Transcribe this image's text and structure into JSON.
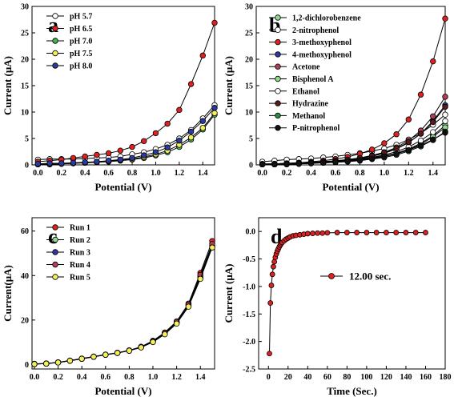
{
  "chart_data": [
    {
      "panel_label": "a",
      "type": "line",
      "xlabel": "Potential (V)",
      "ylabel": "Current (μA)",
      "xlim": [
        -0.05,
        1.5
      ],
      "ylim": [
        0,
        30
      ],
      "xticks": [
        "0.0",
        "0.2",
        "0.4",
        "0.6",
        "0.8",
        "1.0",
        "1.2",
        "1.4"
      ],
      "xtick_values": [
        0,
        0.2,
        0.4,
        0.6,
        0.8,
        1.0,
        1.2,
        1.4
      ],
      "yticks": [
        "0",
        "5",
        "10",
        "15",
        "20",
        "25",
        "30"
      ],
      "ytick_values": [
        0,
        5,
        10,
        15,
        20,
        25,
        30
      ],
      "legend": "top-left",
      "x": [
        0,
        0.1,
        0.2,
        0.3,
        0.4,
        0.5,
        0.6,
        0.7,
        0.8,
        0.9,
        1.0,
        1.1,
        1.2,
        1.3,
        1.4,
        1.5
      ],
      "series": [
        {
          "name": "pH 5.7",
          "color": "#ffffff",
          "values": [
            1.0,
            1.1,
            1.1,
            1.1,
            1.2,
            1.3,
            1.4,
            1.6,
            2.0,
            2.4,
            3.0,
            3.8,
            5.0,
            6.6,
            8.8,
            11.3
          ]
        },
        {
          "name": "pH 6.5",
          "color": "#e02020",
          "values": [
            0.6,
            0.8,
            1.0,
            1.3,
            1.6,
            1.9,
            2.2,
            2.7,
            3.4,
            4.5,
            6.0,
            7.8,
            10.4,
            15.3,
            20.7,
            26.9
          ]
        },
        {
          "name": "pH 7.0",
          "color": "#3cb44b",
          "values": [
            0.1,
            0.1,
            0.2,
            0.3,
            0.4,
            0.5,
            0.6,
            0.8,
            1.0,
            1.3,
            1.8,
            2.4,
            3.4,
            4.8,
            6.7,
            9.5
          ]
        },
        {
          "name": "pH 7.5",
          "color": "#f5f05a",
          "values": [
            0.1,
            0.2,
            0.2,
            0.3,
            0.4,
            0.5,
            0.7,
            0.9,
            1.1,
            1.5,
            2.0,
            2.7,
            3.8,
            5.2,
            7.0,
            9.8
          ]
        },
        {
          "name": "pH 8.0",
          "color": "#2b3aa0",
          "values": [
            0.2,
            0.3,
            0.3,
            0.4,
            0.5,
            0.6,
            0.8,
            1.0,
            1.3,
            1.8,
            2.4,
            3.3,
            4.6,
            6.3,
            8.3,
            10.8
          ]
        }
      ]
    },
    {
      "panel_label": "b",
      "type": "line",
      "xlabel": "Potential (V)",
      "ylabel": "Current (μA)",
      "xlim": [
        -0.05,
        1.5
      ],
      "ylim": [
        0,
        30
      ],
      "xticks": [
        "0.0",
        "0.2",
        "0.4",
        "0.6",
        "0.8",
        "1.0",
        "1.2",
        "1.4"
      ],
      "xtick_values": [
        0,
        0.2,
        0.4,
        0.6,
        0.8,
        1.0,
        1.2,
        1.4
      ],
      "yticks": [
        "0",
        "5",
        "10",
        "15",
        "20",
        "25",
        "30"
      ],
      "ytick_values": [
        0,
        5,
        10,
        15,
        20,
        25,
        30
      ],
      "legend": "top-left",
      "x": [
        0,
        0.1,
        0.2,
        0.3,
        0.4,
        0.5,
        0.6,
        0.7,
        0.8,
        0.9,
        1.0,
        1.1,
        1.2,
        1.3,
        1.4,
        1.5
      ],
      "series": [
        {
          "name": "1,2-dichlorobenzene",
          "color": "#8fdc8f",
          "values": [
            0.2,
            0.2,
            0.3,
            0.3,
            0.4,
            0.5,
            0.6,
            0.8,
            1.0,
            1.3,
            1.7,
            2.2,
            3.0,
            4.1,
            5.5,
            7.5
          ]
        },
        {
          "name": "2-nitrophenol",
          "color": "#ffffff",
          "values": [
            0.6,
            0.8,
            1.0,
            1.1,
            1.2,
            1.4,
            1.6,
            1.9,
            2.2,
            2.6,
            3.1,
            3.8,
            4.8,
            6.0,
            7.6,
            9.5
          ]
        },
        {
          "name": "3-methoxyphenol",
          "color": "#e02020",
          "values": [
            0.1,
            0.2,
            0.3,
            0.4,
            0.6,
            0.8,
            1.1,
            1.5,
            2.1,
            2.9,
            4.1,
            5.8,
            8.6,
            13.3,
            19.6,
            27.7
          ]
        },
        {
          "name": "4-methoxyphenol",
          "color": "#2b3aa0",
          "values": [
            0.1,
            0.1,
            0.2,
            0.3,
            0.4,
            0.5,
            0.7,
            0.9,
            1.2,
            1.6,
            2.2,
            3.0,
            4.2,
            5.9,
            8.3,
            11.3
          ]
        },
        {
          "name": "Acetone",
          "color": "#b0405a",
          "values": [
            0.2,
            0.2,
            0.3,
            0.4,
            0.5,
            0.6,
            0.8,
            1.0,
            1.3,
            1.8,
            2.4,
            3.3,
            4.6,
            6.5,
            9.2,
            12.9
          ]
        },
        {
          "name": "Bisphenol A",
          "color": "#8fdc8f",
          "values": [
            0.1,
            0.1,
            0.2,
            0.2,
            0.3,
            0.4,
            0.5,
            0.7,
            0.9,
            1.2,
            1.6,
            2.1,
            2.9,
            3.9,
            5.3,
            7.1
          ]
        },
        {
          "name": "Ethanol",
          "color": "#ffffff",
          "values": [
            0.1,
            0.1,
            0.2,
            0.3,
            0.4,
            0.5,
            0.6,
            0.8,
            1.1,
            1.4,
            1.9,
            2.5,
            3.4,
            4.6,
            6.2,
            8.3
          ]
        },
        {
          "name": "Hydrazine",
          "color": "#5a1a1a",
          "values": [
            0.1,
            0.2,
            0.2,
            0.3,
            0.4,
            0.6,
            0.7,
            1.0,
            1.3,
            1.7,
            2.3,
            3.1,
            4.3,
            5.9,
            8.1,
            11.0
          ]
        },
        {
          "name": "Methanol",
          "color": "#2e8b3a",
          "values": [
            0.1,
            0.1,
            0.1,
            0.2,
            0.3,
            0.4,
            0.5,
            0.6,
            0.8,
            1.1,
            1.4,
            1.9,
            2.6,
            3.5,
            4.7,
            6.3
          ]
        },
        {
          "name": "P-nitrophenol",
          "color": "#111111",
          "values": [
            0.1,
            0.1,
            0.2,
            0.2,
            0.3,
            0.4,
            0.5,
            0.7,
            0.9,
            1.2,
            1.6,
            2.1,
            2.8,
            3.7,
            4.8,
            6.1
          ]
        }
      ]
    },
    {
      "panel_label": "c",
      "type": "line",
      "xlabel": "Potential (V)",
      "ylabel": "Current(μA)",
      "xlim": [
        -0.02,
        1.52
      ],
      "ylim": [
        -2,
        66
      ],
      "xticks": [
        "0.0",
        "0.2",
        "0.4",
        "0.6",
        "0.8",
        "1.0",
        "1.2",
        "1.4"
      ],
      "xtick_values": [
        0,
        0.2,
        0.4,
        0.6,
        0.8,
        1.0,
        1.2,
        1.4
      ],
      "yticks": [
        "0",
        "20",
        "40",
        "60"
      ],
      "ytick_values": [
        0,
        20,
        40,
        60
      ],
      "legend": "top-left",
      "x": [
        0,
        0.1,
        0.2,
        0.3,
        0.4,
        0.5,
        0.6,
        0.7,
        0.8,
        0.9,
        1.0,
        1.1,
        1.2,
        1.3,
        1.4,
        1.5
      ],
      "series": [
        {
          "name": "Run 1",
          "color": "#e02020",
          "values": [
            0.3,
            0.5,
            1.0,
            1.8,
            2.7,
            3.6,
            4.5,
            5.3,
            6.4,
            8.0,
            10.7,
            14.4,
            19.4,
            27.4,
            41.2,
            55.5
          ]
        },
        {
          "name": "Run 2",
          "color": "#8fdc8f",
          "values": [
            0.2,
            0.4,
            0.9,
            1.7,
            2.6,
            3.5,
            4.4,
            5.2,
            6.2,
            7.7,
            10.2,
            13.8,
            18.6,
            26.3,
            38.9,
            52.8
          ]
        },
        {
          "name": "Run 3",
          "color": "#2b3aa0",
          "values": [
            0.2,
            0.4,
            0.9,
            1.7,
            2.6,
            3.5,
            4.4,
            5.2,
            6.3,
            7.8,
            10.4,
            14.0,
            19.0,
            26.8,
            39.6,
            53.6
          ]
        },
        {
          "name": "Run 4",
          "color": "#b0405a",
          "values": [
            0.3,
            0.5,
            1.0,
            1.7,
            2.6,
            3.5,
            4.4,
            5.3,
            6.3,
            7.9,
            10.5,
            14.2,
            19.2,
            27.0,
            40.3,
            54.2
          ]
        },
        {
          "name": "Run 5",
          "color": "#f5f05a",
          "values": [
            0.2,
            0.4,
            0.9,
            1.7,
            2.6,
            3.5,
            4.4,
            5.2,
            6.2,
            7.7,
            10.1,
            13.6,
            18.4,
            26.0,
            38.5,
            52.6
          ]
        }
      ]
    },
    {
      "panel_label": "d",
      "type": "scatter",
      "xlabel": "Time (Sec.)",
      "ylabel": "Current (μA)",
      "xlim": [
        -10,
        180
      ],
      "ylim": [
        -2.5,
        0.25
      ],
      "xticks": [
        "0",
        "20",
        "40",
        "60",
        "80",
        "100",
        "120",
        "140",
        "160",
        "180"
      ],
      "xtick_values": [
        0,
        20,
        40,
        60,
        80,
        100,
        120,
        140,
        160,
        180
      ],
      "yticks": [
        "0.0",
        "-0.5",
        "-1.0",
        "-1.5",
        "-2.0",
        "-2.5"
      ],
      "ytick_values": [
        0,
        -0.5,
        -1.0,
        -1.5,
        -2.0,
        -2.5
      ],
      "legend": "right",
      "series": [
        {
          "name": "12.00 sec.",
          "color": "#e02020",
          "x": [
            1,
            2,
            3,
            4,
            5,
            6,
            7,
            8,
            9,
            10,
            11,
            12,
            13,
            14,
            16,
            18,
            20,
            22,
            25,
            28,
            32,
            36,
            40,
            45,
            50,
            55,
            60,
            70,
            80,
            90,
            100,
            110,
            120,
            130,
            140,
            150,
            160
          ],
          "values": [
            -2.22,
            -1.3,
            -0.98,
            -0.78,
            -0.64,
            -0.55,
            -0.47,
            -0.41,
            -0.36,
            -0.32,
            -0.28,
            -0.25,
            -0.22,
            -0.2,
            -0.17,
            -0.14,
            -0.12,
            -0.1,
            -0.08,
            -0.07,
            -0.06,
            -0.05,
            -0.04,
            -0.035,
            -0.03,
            -0.03,
            -0.025,
            -0.02,
            -0.02,
            -0.02,
            -0.02,
            -0.02,
            -0.02,
            -0.02,
            -0.02,
            -0.02,
            -0.02
          ]
        }
      ]
    }
  ]
}
